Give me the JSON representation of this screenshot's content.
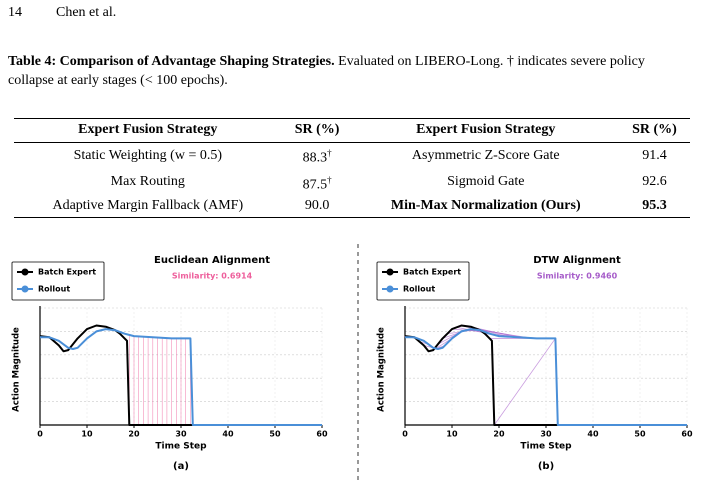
{
  "header": {
    "page": "14",
    "authors": "Chen et al."
  },
  "caption": {
    "label": "Table 4: Comparison of Advantage Shaping Strategies.",
    "text": "Evaluated on LIBERO-Long. † indicates severe policy collapse at early stages (< 100 epochs)."
  },
  "table": {
    "columns": [
      "Expert Fusion Strategy",
      "SR (%)",
      "Expert Fusion Strategy",
      "SR (%)"
    ],
    "rows": [
      [
        {
          "text": "Static Weighting (w = 0.5)"
        },
        {
          "text": "88.3",
          "note": "†"
        },
        {
          "text": "Asymmetric Z-Score Gate"
        },
        {
          "text": "91.4"
        }
      ],
      [
        {
          "text": "Max Routing"
        },
        {
          "text": "87.5",
          "note": "†"
        },
        {
          "text": "Sigmoid Gate"
        },
        {
          "text": "92.6"
        }
      ],
      [
        {
          "text": "Adaptive Margin Fallback (AMF)"
        },
        {
          "text": "90.0"
        },
        {
          "text": "Min-Max Normalization (Ours)",
          "bold": true
        },
        {
          "text": "95.3",
          "bold": true
        }
      ]
    ]
  },
  "chart_data": [
    {
      "type": "line",
      "title": "Euclidean Alignment",
      "subtitle": "Similarity: 0.6914",
      "subtitle_color": "#ee5f9c",
      "xlabel": "Time Step",
      "ylabel": "Action Magnitude",
      "panel_label": "(a)",
      "xlim": [
        0,
        60
      ],
      "ylim": [
        0,
        1
      ],
      "xticks": [
        0,
        10,
        20,
        30,
        40,
        50,
        60
      ],
      "grid": true,
      "series": [
        {
          "name": "Batch Expert",
          "color": "#000000",
          "x": [
            0,
            2,
            4,
            5,
            6,
            8,
            10,
            12,
            14,
            16,
            17,
            18,
            18.5,
            19,
            20,
            30,
            40,
            50,
            60
          ],
          "values": [
            0.76,
            0.75,
            0.68,
            0.63,
            0.64,
            0.74,
            0.82,
            0.85,
            0.84,
            0.81,
            0.78,
            0.74,
            0.72,
            0,
            0,
            0,
            0,
            0,
            0
          ]
        },
        {
          "name": "Rollout",
          "color": "#4a8fd8",
          "x": [
            0,
            2,
            4,
            6,
            7,
            8,
            10,
            12,
            14,
            16,
            18,
            20,
            24,
            28,
            31,
            32,
            32.5,
            40,
            50,
            60
          ],
          "values": [
            0.75,
            0.75,
            0.72,
            0.66,
            0.65,
            0.66,
            0.74,
            0.8,
            0.82,
            0.81,
            0.78,
            0.76,
            0.75,
            0.74,
            0.74,
            0.74,
            0,
            0,
            0,
            0
          ]
        }
      ]
    },
    {
      "type": "line",
      "title": "DTW Alignment",
      "subtitle": "Similarity: 0.9460",
      "subtitle_color": "#a65cc9",
      "xlabel": "Time Step",
      "ylabel": "Action Magnitude",
      "panel_label": "(b)",
      "xlim": [
        0,
        60
      ],
      "ylim": [
        0,
        1
      ],
      "xticks": [
        0,
        10,
        20,
        30,
        40,
        50,
        60
      ],
      "grid": true,
      "series": [
        {
          "name": "Batch Expert",
          "color": "#000000",
          "x": [
            0,
            2,
            4,
            5,
            6,
            8,
            10,
            12,
            14,
            16,
            17,
            18,
            18.5,
            19,
            20,
            30,
            40,
            50,
            60
          ],
          "values": [
            0.76,
            0.75,
            0.68,
            0.63,
            0.64,
            0.74,
            0.82,
            0.85,
            0.84,
            0.81,
            0.78,
            0.74,
            0.72,
            0,
            0,
            0,
            0,
            0,
            0
          ]
        },
        {
          "name": "Rollout",
          "color": "#4a8fd8",
          "x": [
            0,
            2,
            4,
            6,
            7,
            8,
            10,
            12,
            14,
            16,
            18,
            20,
            24,
            28,
            31,
            32,
            32.5,
            40,
            50,
            60
          ],
          "values": [
            0.75,
            0.75,
            0.72,
            0.66,
            0.65,
            0.66,
            0.74,
            0.8,
            0.82,
            0.81,
            0.78,
            0.76,
            0.75,
            0.74,
            0.74,
            0.74,
            0,
            0,
            0,
            0
          ]
        }
      ]
    }
  ]
}
